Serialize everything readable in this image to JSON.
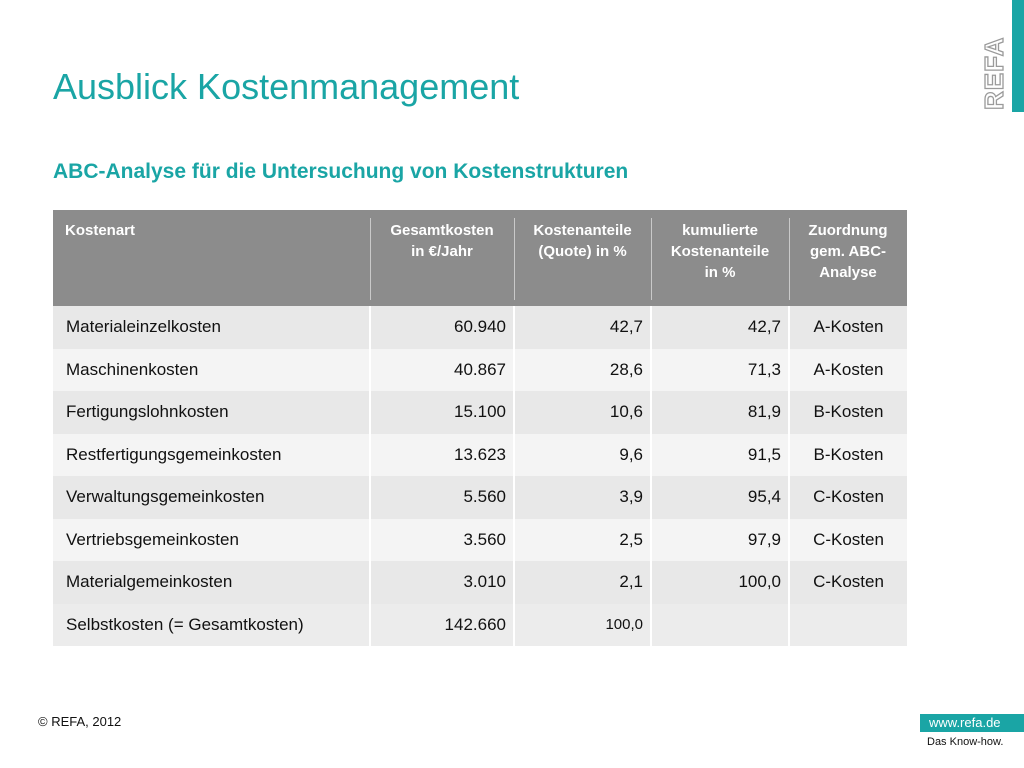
{
  "slide": {
    "title": "Ausblick Kostenmanagement",
    "subtitle": "ABC-Analyse für die Untersuchung von Kostenstrukturen",
    "logo_text": "REFA"
  },
  "table": {
    "headers": [
      [
        "Kostenart"
      ],
      [
        "Gesamtkosten",
        "in €/Jahr"
      ],
      [
        "Kostenanteile",
        "(Quote) in %"
      ],
      [
        "kumulierte",
        "Kostenanteile",
        "in %"
      ],
      [
        "Zuordnung",
        "gem. ABC-",
        "Analyse"
      ]
    ],
    "rows": [
      [
        "Materialeinzelkosten",
        "60.940",
        "42,7",
        "42,7",
        "A-Kosten"
      ],
      [
        "Maschinenkosten",
        "40.867",
        "28,6",
        "71,3",
        "A-Kosten"
      ],
      [
        "Fertigungslohnkosten",
        "15.100",
        "10,6",
        "81,9",
        "B-Kosten"
      ],
      [
        "Restfertigungsgemeinkosten",
        "13.623",
        "9,6",
        "91,5",
        "B-Kosten"
      ],
      [
        "Verwaltungsgemeinkosten",
        "5.560",
        "3,9",
        "95,4",
        "C-Kosten"
      ],
      [
        "Vertriebsgemeinkosten",
        "3.560",
        "2,5",
        "97,9",
        "C-Kosten"
      ],
      [
        "Materialgemeinkosten",
        "3.010",
        "2,1",
        "100,0",
        "C-Kosten"
      ]
    ],
    "total": [
      "Selbstkosten (= Gesamtkosten)",
      "142.660",
      "100,0",
      "",
      ""
    ]
  },
  "footer": {
    "copyright": "© REFA, 2012",
    "website": "www.refa.de",
    "tagline": "Das Know-how."
  },
  "colors": {
    "accent": "#1aa5a5",
    "header_bg": "#8c8c8c",
    "row_dark": "#e8e8e8",
    "row_light": "#f4f4f4"
  }
}
